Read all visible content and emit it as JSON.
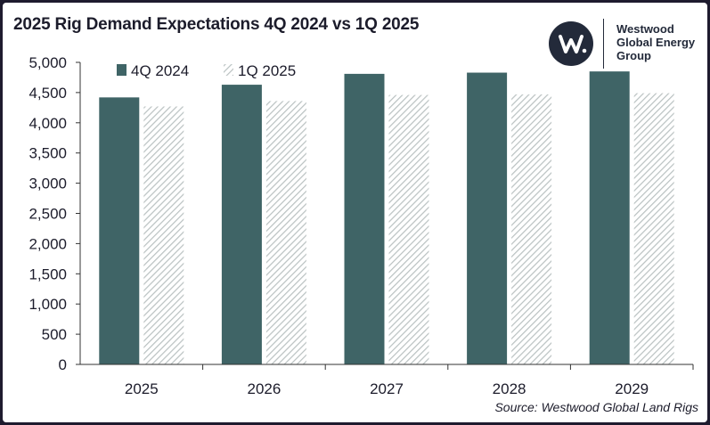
{
  "header": {
    "title": "2025 Rig Demand Expectations 4Q 2024 vs 1Q 2025"
  },
  "logo": {
    "name_line1": "Westwood",
    "name_line2": "Global Energy",
    "name_line3": "Group",
    "icon": "westwood-w-logo-icon"
  },
  "source": "Source: Westwood Global Land Rigs",
  "colors": {
    "series1": "#3f6466",
    "series2_hatch": "#c9d0d0",
    "background": "#1e1b2e"
  },
  "chart_data": {
    "type": "bar",
    "title": "2025 Rig Demand Expectations 4Q 2024 vs 1Q 2025",
    "categories": [
      "2025",
      "2026",
      "2027",
      "2028",
      "2029"
    ],
    "series": [
      {
        "name": "4Q 2024",
        "values": [
          4420,
          4630,
          4810,
          4830,
          4850
        ]
      },
      {
        "name": "1Q 2025",
        "values": [
          4270,
          4360,
          4460,
          4470,
          4490
        ]
      }
    ],
    "ylim": [
      0,
      5000
    ],
    "yticks": [
      0,
      500,
      1000,
      1500,
      2000,
      2500,
      3000,
      3500,
      4000,
      4500,
      5000
    ],
    "ytick_labels": [
      "0",
      "500",
      "1,000",
      "1,500",
      "2,000",
      "2,500",
      "3,000",
      "3,500",
      "4,000",
      "4,500",
      "5,000"
    ],
    "legend_position": "top-left",
    "grid": false
  }
}
